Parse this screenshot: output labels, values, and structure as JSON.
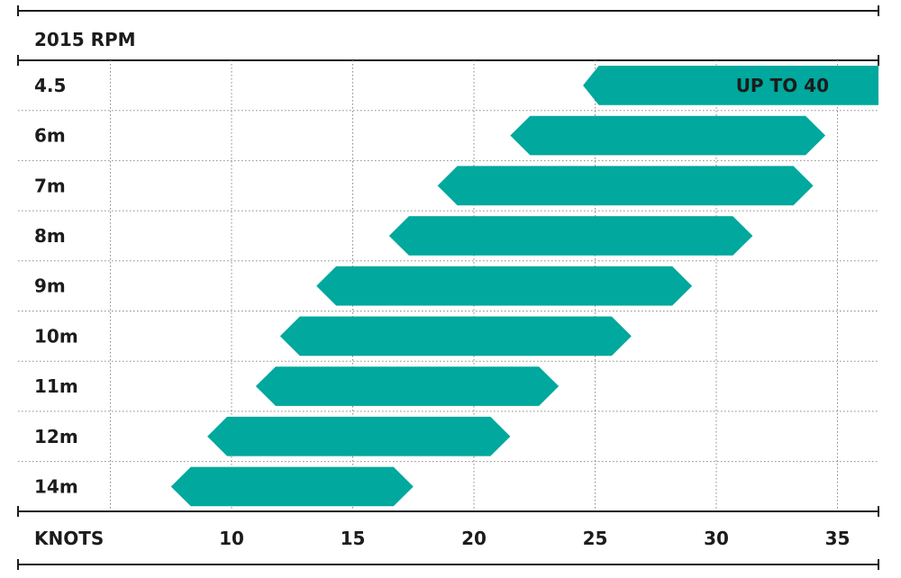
{
  "chart_data": {
    "type": "bar",
    "title": "2015 RPM",
    "xlabel": "KNOTS",
    "categories": [
      "4.5",
      "6m",
      "7m",
      "8m",
      "9m",
      "10m",
      "11m",
      "12m",
      "14m"
    ],
    "ranges": [
      {
        "min": 24.5,
        "max": 40,
        "open_end": true,
        "label": "UP TO 40"
      },
      {
        "min": 21.5,
        "max": 34.5
      },
      {
        "min": 18.5,
        "max": 34
      },
      {
        "min": 16.5,
        "max": 31.5
      },
      {
        "min": 13.5,
        "max": 29
      },
      {
        "min": 12,
        "max": 26.5
      },
      {
        "min": 11,
        "max": 23.5
      },
      {
        "min": 9,
        "max": 21.5
      },
      {
        "min": 7.5,
        "max": 17.5
      }
    ],
    "x_ticks": [
      10,
      15,
      20,
      25,
      30,
      35
    ],
    "xlim": [
      5.5,
      37.5
    ],
    "bar_color": "#00a89d",
    "line_color": "#1c1c1c"
  }
}
